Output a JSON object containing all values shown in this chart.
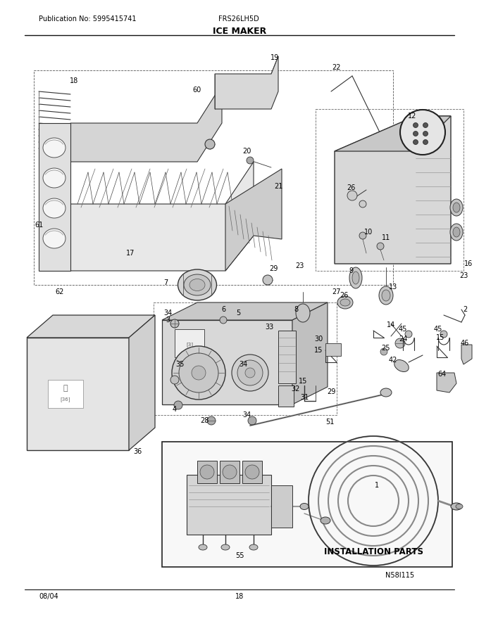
{
  "title": "ICE MAKER",
  "pub_no": "Publication No: 5995415741",
  "model": "FRS26LH5D",
  "date": "08/04",
  "page": "18",
  "diagram_id": "N58I115",
  "installation_parts_label": "INSTALLATION PARTS",
  "bg_color": "#ffffff",
  "figsize": [
    6.8,
    8.8
  ],
  "dpi": 100
}
